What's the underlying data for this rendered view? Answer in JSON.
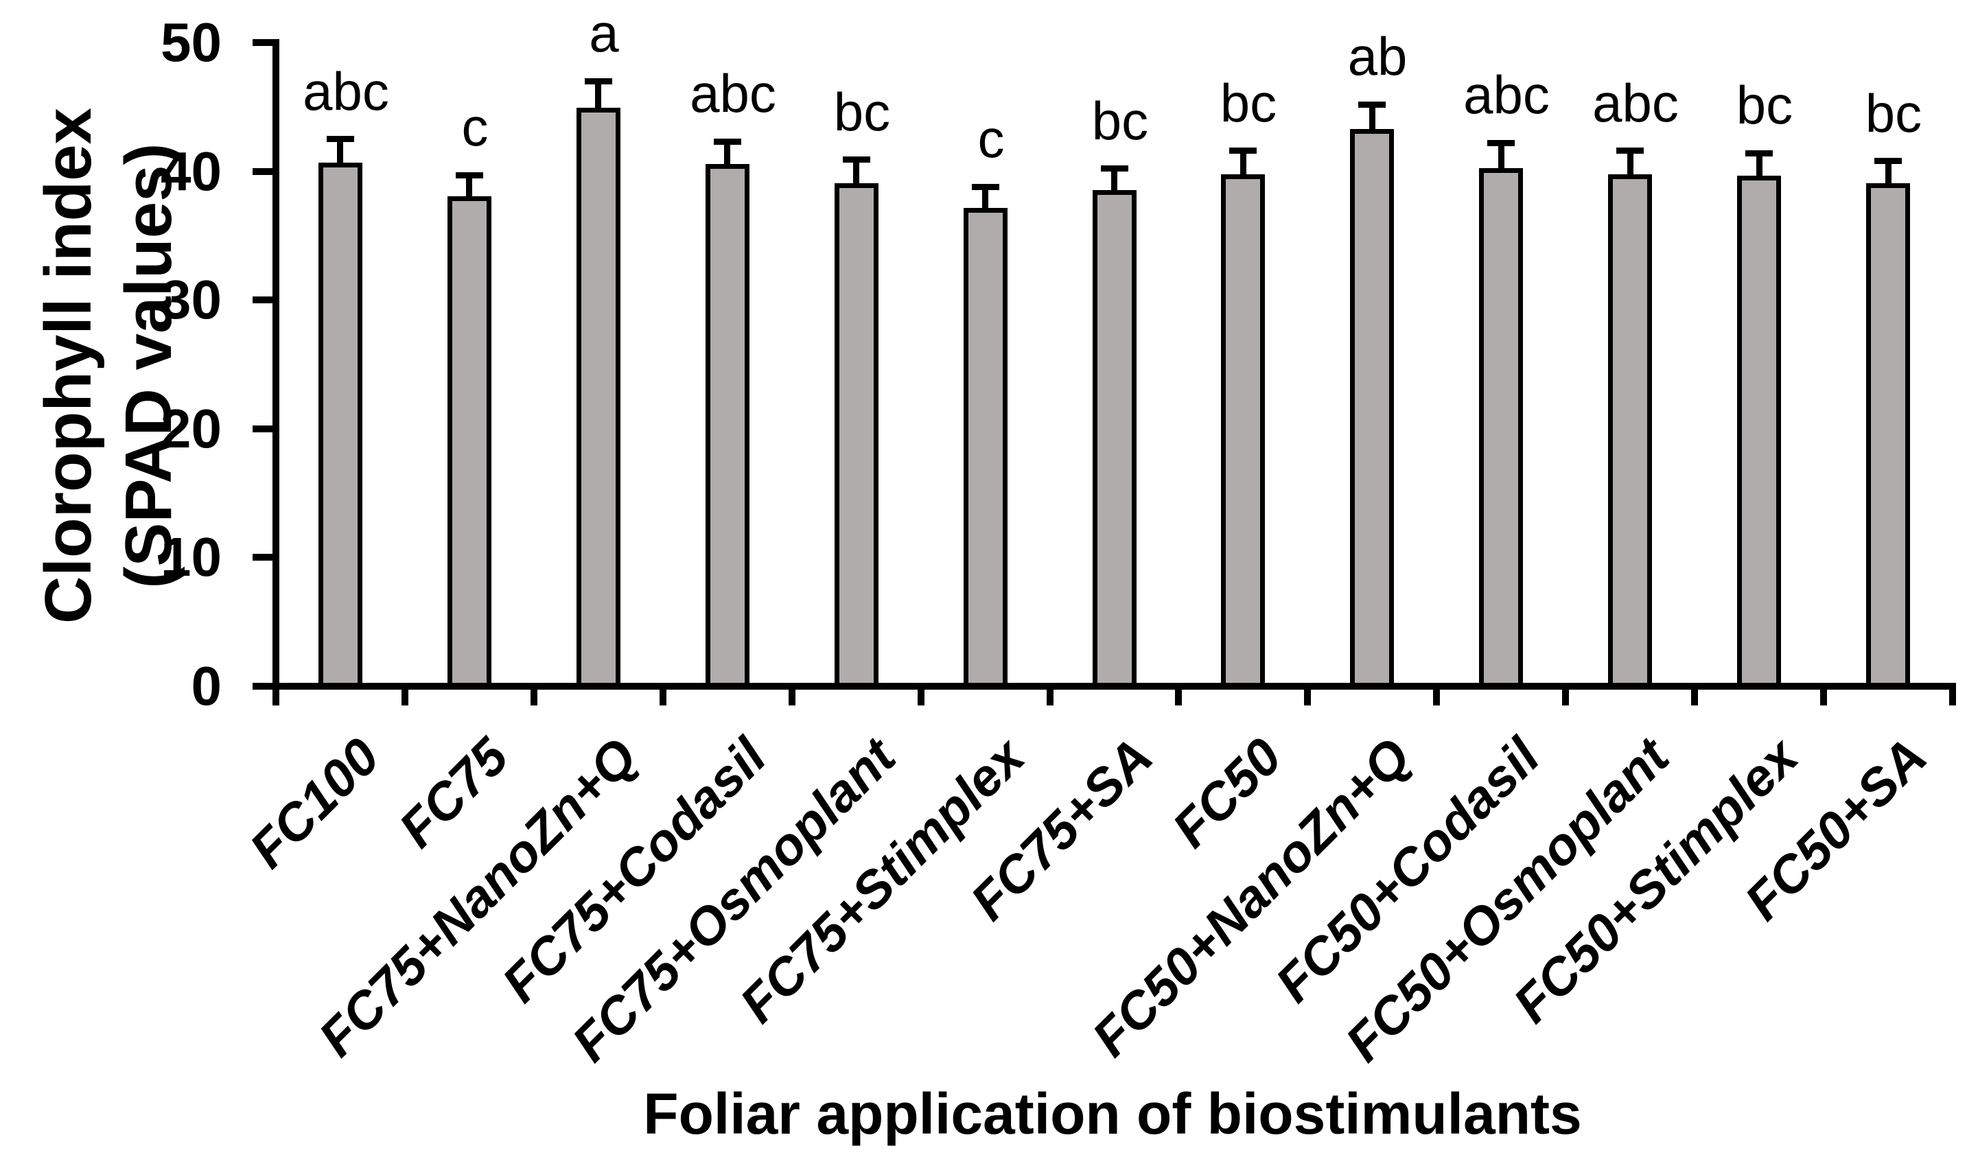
{
  "figure": {
    "background_color": "#ffffff",
    "text_color": "#000000"
  },
  "chart_data": {
    "type": "bar",
    "title": "",
    "xlabel": "Foliar application of biostimulants",
    "ylabel_line1": "Clorophyll index",
    "ylabel_line2": "(SPAD values)",
    "ylim": [
      0,
      50
    ],
    "yticks": [
      0,
      10,
      20,
      30,
      40,
      50
    ],
    "grid": false,
    "legend": "none",
    "bar_color": "#b0acab",
    "bar_border_color": "#000000",
    "error_bar_color": "#000000",
    "categories": [
      "FC100",
      "FC75",
      "FC75+NanoZn+Q",
      "FC75+Codasil",
      "FC75+Osmoplant",
      "FC75+Stimplex",
      "FC75+SA",
      "FC50",
      "FC50+NanoZn+Q",
      "FC50+Codasil",
      "FC50+Osmoplant",
      "FC50+Stimplex",
      "FC50+SA"
    ],
    "values": [
      40.5,
      37.9,
      44.8,
      40.4,
      38.9,
      37.0,
      38.4,
      39.6,
      43.1,
      40.1,
      39.6,
      39.5,
      38.9
    ],
    "errors_plus": [
      2.0,
      1.8,
      2.2,
      1.9,
      2.0,
      1.8,
      1.8,
      2.0,
      2.1,
      2.1,
      2.0,
      1.9,
      1.9
    ],
    "sig_letters": [
      "abc",
      "c",
      "a",
      "abc",
      "bc",
      "c",
      "bc",
      "bc",
      "ab",
      "abc",
      "abc",
      "bc",
      "bc"
    ]
  }
}
